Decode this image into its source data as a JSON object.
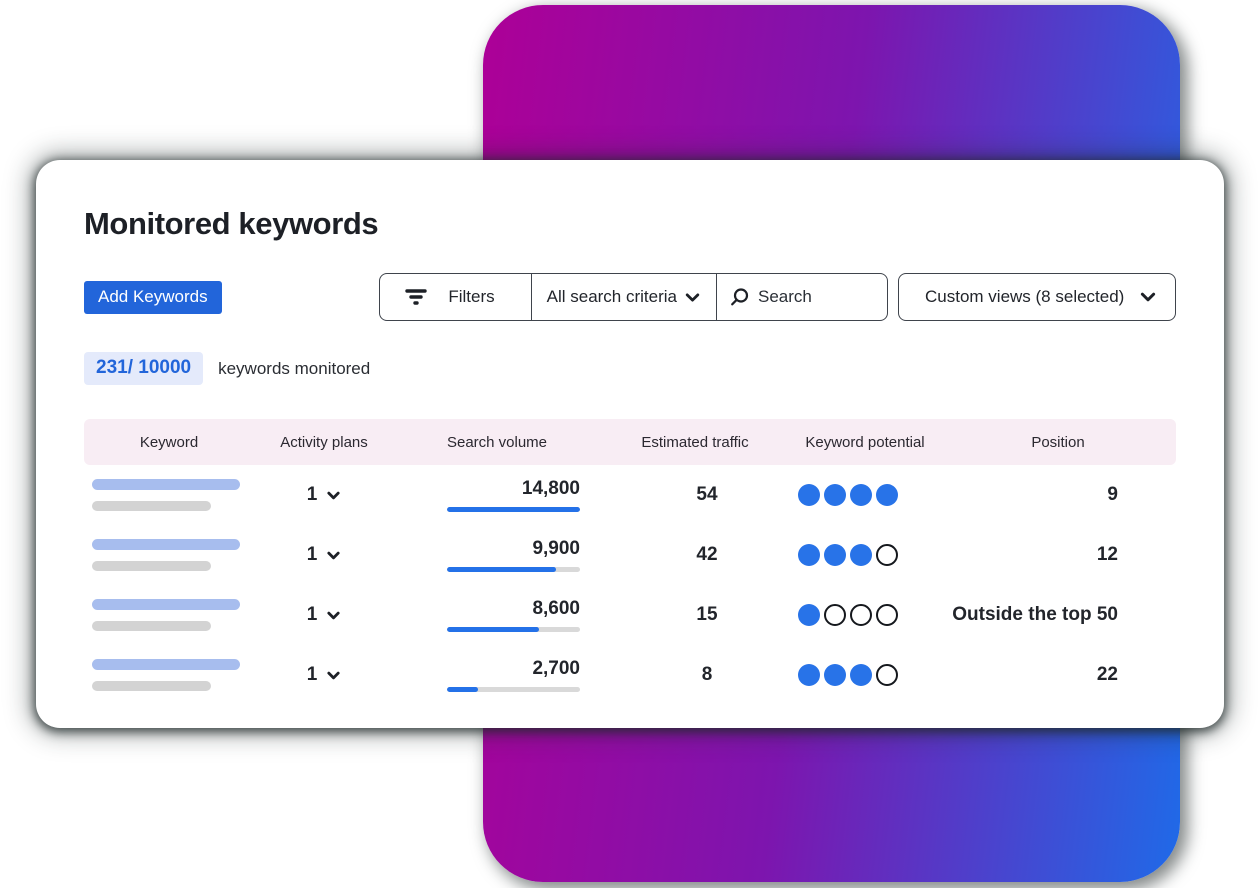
{
  "title": "Monitored keywords",
  "toolbar": {
    "add_keywords_label": "Add Keywords",
    "filters_label": "Filters",
    "criteria_selected": "All search criteria",
    "search_placeholder": "Search",
    "custom_views_label": "Custom views (8 selected)"
  },
  "counter": {
    "value": "231/ 10000",
    "label": "keywords monitored"
  },
  "table": {
    "columns": [
      "Keyword",
      "Activity plans",
      "Search volume",
      "Estimated traffic",
      "Keyword potential",
      "Position"
    ],
    "dots_total": 4,
    "rows": [
      {
        "activity_plans": "1",
        "search_volume": "14,800",
        "volume_pct": 100,
        "estimated_traffic": "54",
        "potential_filled": 4,
        "position": "9"
      },
      {
        "activity_plans": "1",
        "search_volume": "9,900",
        "volume_pct": 82,
        "estimated_traffic": "42",
        "potential_filled": 3,
        "position": "12"
      },
      {
        "activity_plans": "1",
        "search_volume": "8,600",
        "volume_pct": 69,
        "estimated_traffic": "15",
        "potential_filled": 1,
        "position": "Outside the top 50"
      },
      {
        "activity_plans": "1",
        "search_volume": "2,700",
        "volume_pct": 23,
        "estimated_traffic": "8",
        "potential_filled": 3,
        "position": "22"
      }
    ]
  },
  "icons": {
    "filter": "filter-lines-icon",
    "search": "magnifier-icon",
    "chevron": "chevron-down-icon"
  },
  "colors": {
    "accent_blue": "#2265da",
    "dot_blue": "#2873e8",
    "progress_blue": "#2471e8",
    "track_gray": "#d9d9d9",
    "badge_bg": "#e4eafb",
    "header_bg": "#f8edf4",
    "placeholder_blue": "#a7bdee",
    "placeholder_gray": "#d3d3d3",
    "gradient_start": "#ad0097",
    "gradient_mid": "#7d15ae",
    "gradient_end": "#1f6ae8"
  }
}
